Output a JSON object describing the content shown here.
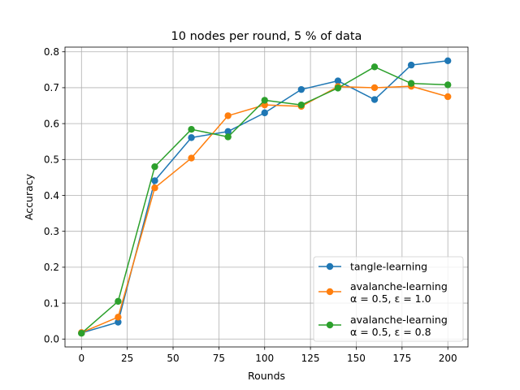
{
  "chart_data": {
    "type": "line",
    "title": "10 nodes per round, 5 % of data",
    "xlabel": "Rounds",
    "ylabel": "Accuracy",
    "x": [
      0,
      20,
      40,
      60,
      80,
      100,
      120,
      140,
      160,
      180,
      200
    ],
    "xlim": [
      -9,
      211
    ],
    "ylim": [
      -0.022,
      0.813
    ],
    "xticks": [
      "0",
      "25",
      "50",
      "75",
      "100",
      "125",
      "150",
      "175",
      "200"
    ],
    "yticks": [
      "0.0",
      "0.1",
      "0.2",
      "0.3",
      "0.4",
      "0.5",
      "0.6",
      "0.7",
      "0.8"
    ],
    "grid": true,
    "legend_position": "lower-right",
    "series": [
      {
        "name": "tangle-learning",
        "color": "#1f77b4",
        "values": [
          0.017,
          0.047,
          0.441,
          0.561,
          0.578,
          0.63,
          0.695,
          0.719,
          0.667,
          0.763,
          0.775
        ]
      },
      {
        "name": "avalanche-learning α = 0.5, ε = 1.0",
        "legend_lines": [
          "avalanche-learning",
          "α = 0.5, ε = 1.0"
        ],
        "color": "#ff7f0e",
        "values": [
          0.018,
          0.061,
          0.421,
          0.504,
          0.622,
          0.652,
          0.648,
          0.703,
          0.7,
          0.704,
          0.675
        ]
      },
      {
        "name": "avalanche-learning α = 0.5, ε = 0.8",
        "legend_lines": [
          "avalanche-learning",
          "α = 0.5, ε = 0.8"
        ],
        "color": "#2ca02c",
        "values": [
          0.016,
          0.105,
          0.48,
          0.584,
          0.563,
          0.665,
          0.652,
          0.699,
          0.758,
          0.712,
          0.708
        ]
      }
    ]
  }
}
